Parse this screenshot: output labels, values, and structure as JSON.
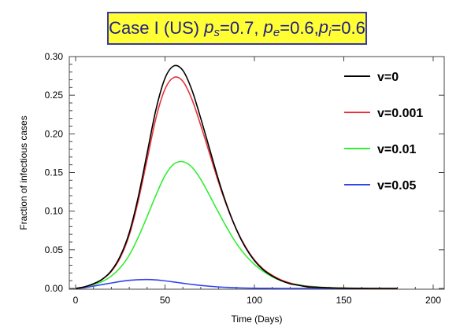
{
  "title": {
    "prefix": "Case I (US) ",
    "p_s_label": "p",
    "p_s_sub": "s",
    "p_s_value": "=0.7, ",
    "p_e_label": "p",
    "p_e_sub": "e",
    "p_e_value": "=0.6,",
    "p_i_label": "p",
    "p_i_sub": "i",
    "p_i_value": "=0.6"
  },
  "chart_data": {
    "type": "line",
    "title": "Case I (US) p_s=0.7, p_e=0.6, p_i=0.6",
    "xlabel": "Time (Days)",
    "ylabel": "Fraction of infectious cases",
    "xlim": [
      0,
      200
    ],
    "ylim": [
      0,
      0.3
    ],
    "xticks": [
      0,
      50,
      100,
      150,
      200
    ],
    "yticks": [
      0.0,
      0.05,
      0.1,
      0.15,
      0.2,
      0.25,
      0.3
    ],
    "xtick_labels": [
      "0",
      "50",
      "100",
      "150",
      "200"
    ],
    "ytick_labels": [
      "0.00",
      "0.05",
      "0.10",
      "0.15",
      "0.20",
      "0.25",
      "0.30"
    ],
    "grid": false,
    "legend_position": "top-right",
    "x": [
      0,
      5,
      10,
      15,
      20,
      25,
      30,
      35,
      40,
      45,
      50,
      55,
      60,
      65,
      70,
      75,
      80,
      85,
      90,
      95,
      100,
      105,
      110,
      115,
      120,
      125,
      130,
      135,
      140,
      145,
      150,
      155,
      160,
      165,
      170,
      175,
      180
    ],
    "series": [
      {
        "name": "v=0",
        "color": "#000000",
        "values": [
          0.0,
          0.002,
          0.006,
          0.012,
          0.023,
          0.042,
          0.072,
          0.118,
          0.175,
          0.232,
          0.272,
          0.288,
          0.282,
          0.257,
          0.22,
          0.18,
          0.14,
          0.105,
          0.076,
          0.053,
          0.036,
          0.024,
          0.016,
          0.01,
          0.006,
          0.004,
          0.002,
          0.0015,
          0.001,
          0.0005,
          0.0003,
          0.0002,
          0.0001,
          0.0,
          0.0,
          0.0,
          0.0
        ]
      },
      {
        "name": "v=0.001",
        "color": "#e8333a",
        "values": [
          0.0,
          0.002,
          0.006,
          0.012,
          0.022,
          0.04,
          0.069,
          0.113,
          0.167,
          0.221,
          0.258,
          0.273,
          0.268,
          0.245,
          0.211,
          0.174,
          0.137,
          0.104,
          0.076,
          0.054,
          0.037,
          0.025,
          0.017,
          0.011,
          0.007,
          0.004,
          0.0025,
          0.0015,
          0.001,
          0.0006,
          0.0004,
          0.0002,
          0.0001,
          0.0,
          0.0,
          0.0,
          0.0
        ]
      },
      {
        "name": "v=0.01",
        "color": "#33ee33",
        "values": [
          0.0,
          0.002,
          0.005,
          0.009,
          0.016,
          0.027,
          0.043,
          0.066,
          0.093,
          0.121,
          0.146,
          0.161,
          0.164,
          0.157,
          0.141,
          0.12,
          0.098,
          0.077,
          0.058,
          0.043,
          0.031,
          0.022,
          0.015,
          0.01,
          0.007,
          0.0045,
          0.003,
          0.002,
          0.0012,
          0.0008,
          0.0005,
          0.0003,
          0.0002,
          0.0001,
          0.0,
          0.0,
          0.0
        ]
      },
      {
        "name": "v=0.05",
        "color": "#3344ee",
        "values": [
          0.0,
          0.001,
          0.003,
          0.005,
          0.007,
          0.009,
          0.0105,
          0.0113,
          0.0115,
          0.011,
          0.0098,
          0.0083,
          0.0067,
          0.0052,
          0.0039,
          0.0028,
          0.0019,
          0.0013,
          0.0008,
          0.0005,
          0.0003,
          0.0002,
          0.0001,
          0.0,
          0.0,
          0.0,
          0.0,
          0.0,
          0.0,
          0.0,
          0.0,
          0.0,
          0.0,
          0.0,
          0.0,
          0.0,
          0.0
        ]
      }
    ]
  }
}
